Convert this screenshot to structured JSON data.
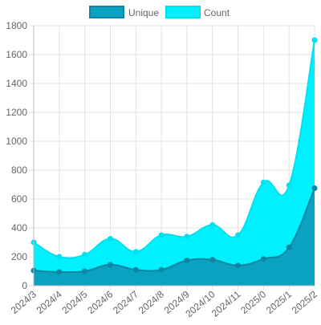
{
  "chart_data": {
    "type": "area",
    "title": "",
    "xlabel": "",
    "ylabel": "",
    "categories": [
      "2024/3",
      "2024/4",
      "2024/5",
      "2024/6",
      "2024/7",
      "2024/8",
      "2024/9",
      "2024/10",
      "2024/11",
      "2025/0",
      "2025/1",
      "2025/2"
    ],
    "ylim": [
      0,
      1800
    ],
    "yticks": [
      0,
      200,
      400,
      600,
      800,
      1000,
      1200,
      1400,
      1600,
      1800
    ],
    "grid": true,
    "legend_position": "top",
    "series": [
      {
        "name": "Unique",
        "values": [
          105,
          95,
          100,
          145,
          110,
          110,
          175,
          180,
          140,
          185,
          265,
          675
        ],
        "fill": "#0aa2c0",
        "stroke": "#0b87a5"
      },
      {
        "name": "Count",
        "values": [
          300,
          200,
          215,
          325,
          235,
          350,
          340,
          420,
          350,
          715,
          695,
          1700
        ],
        "fill": "#00f0ff",
        "stroke": "#00e1ee"
      }
    ]
  }
}
